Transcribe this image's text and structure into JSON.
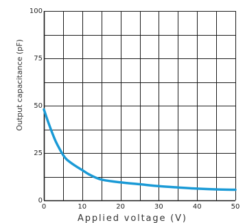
{
  "chart_data": {
    "type": "line",
    "xlabel": "Applied voltage (V)",
    "ylabel": "Output capacitance (pF)",
    "xlim": [
      0,
      50
    ],
    "ylim": [
      0,
      100
    ],
    "x_ticks": [
      "0",
      "10",
      "20",
      "30",
      "40",
      "50"
    ],
    "y_ticks": [
      "0",
      "25",
      "50",
      "75",
      "100"
    ],
    "grid": true,
    "series": [
      {
        "x": [
          0,
          1,
          2,
          3,
          4,
          5,
          6,
          8,
          10,
          12,
          15,
          20,
          25,
          30,
          35,
          40,
          45,
          50
        ],
        "y": [
          48,
          42,
          36.5,
          31.5,
          27.5,
          24,
          21.5,
          18.5,
          16,
          13.5,
          11,
          9.5,
          8.5,
          7.5,
          6.8,
          6.2,
          5.8,
          5.6
        ]
      }
    ],
    "colors": {
      "line": "#1a9ad6",
      "grid": "#1a1a1a"
    }
  }
}
